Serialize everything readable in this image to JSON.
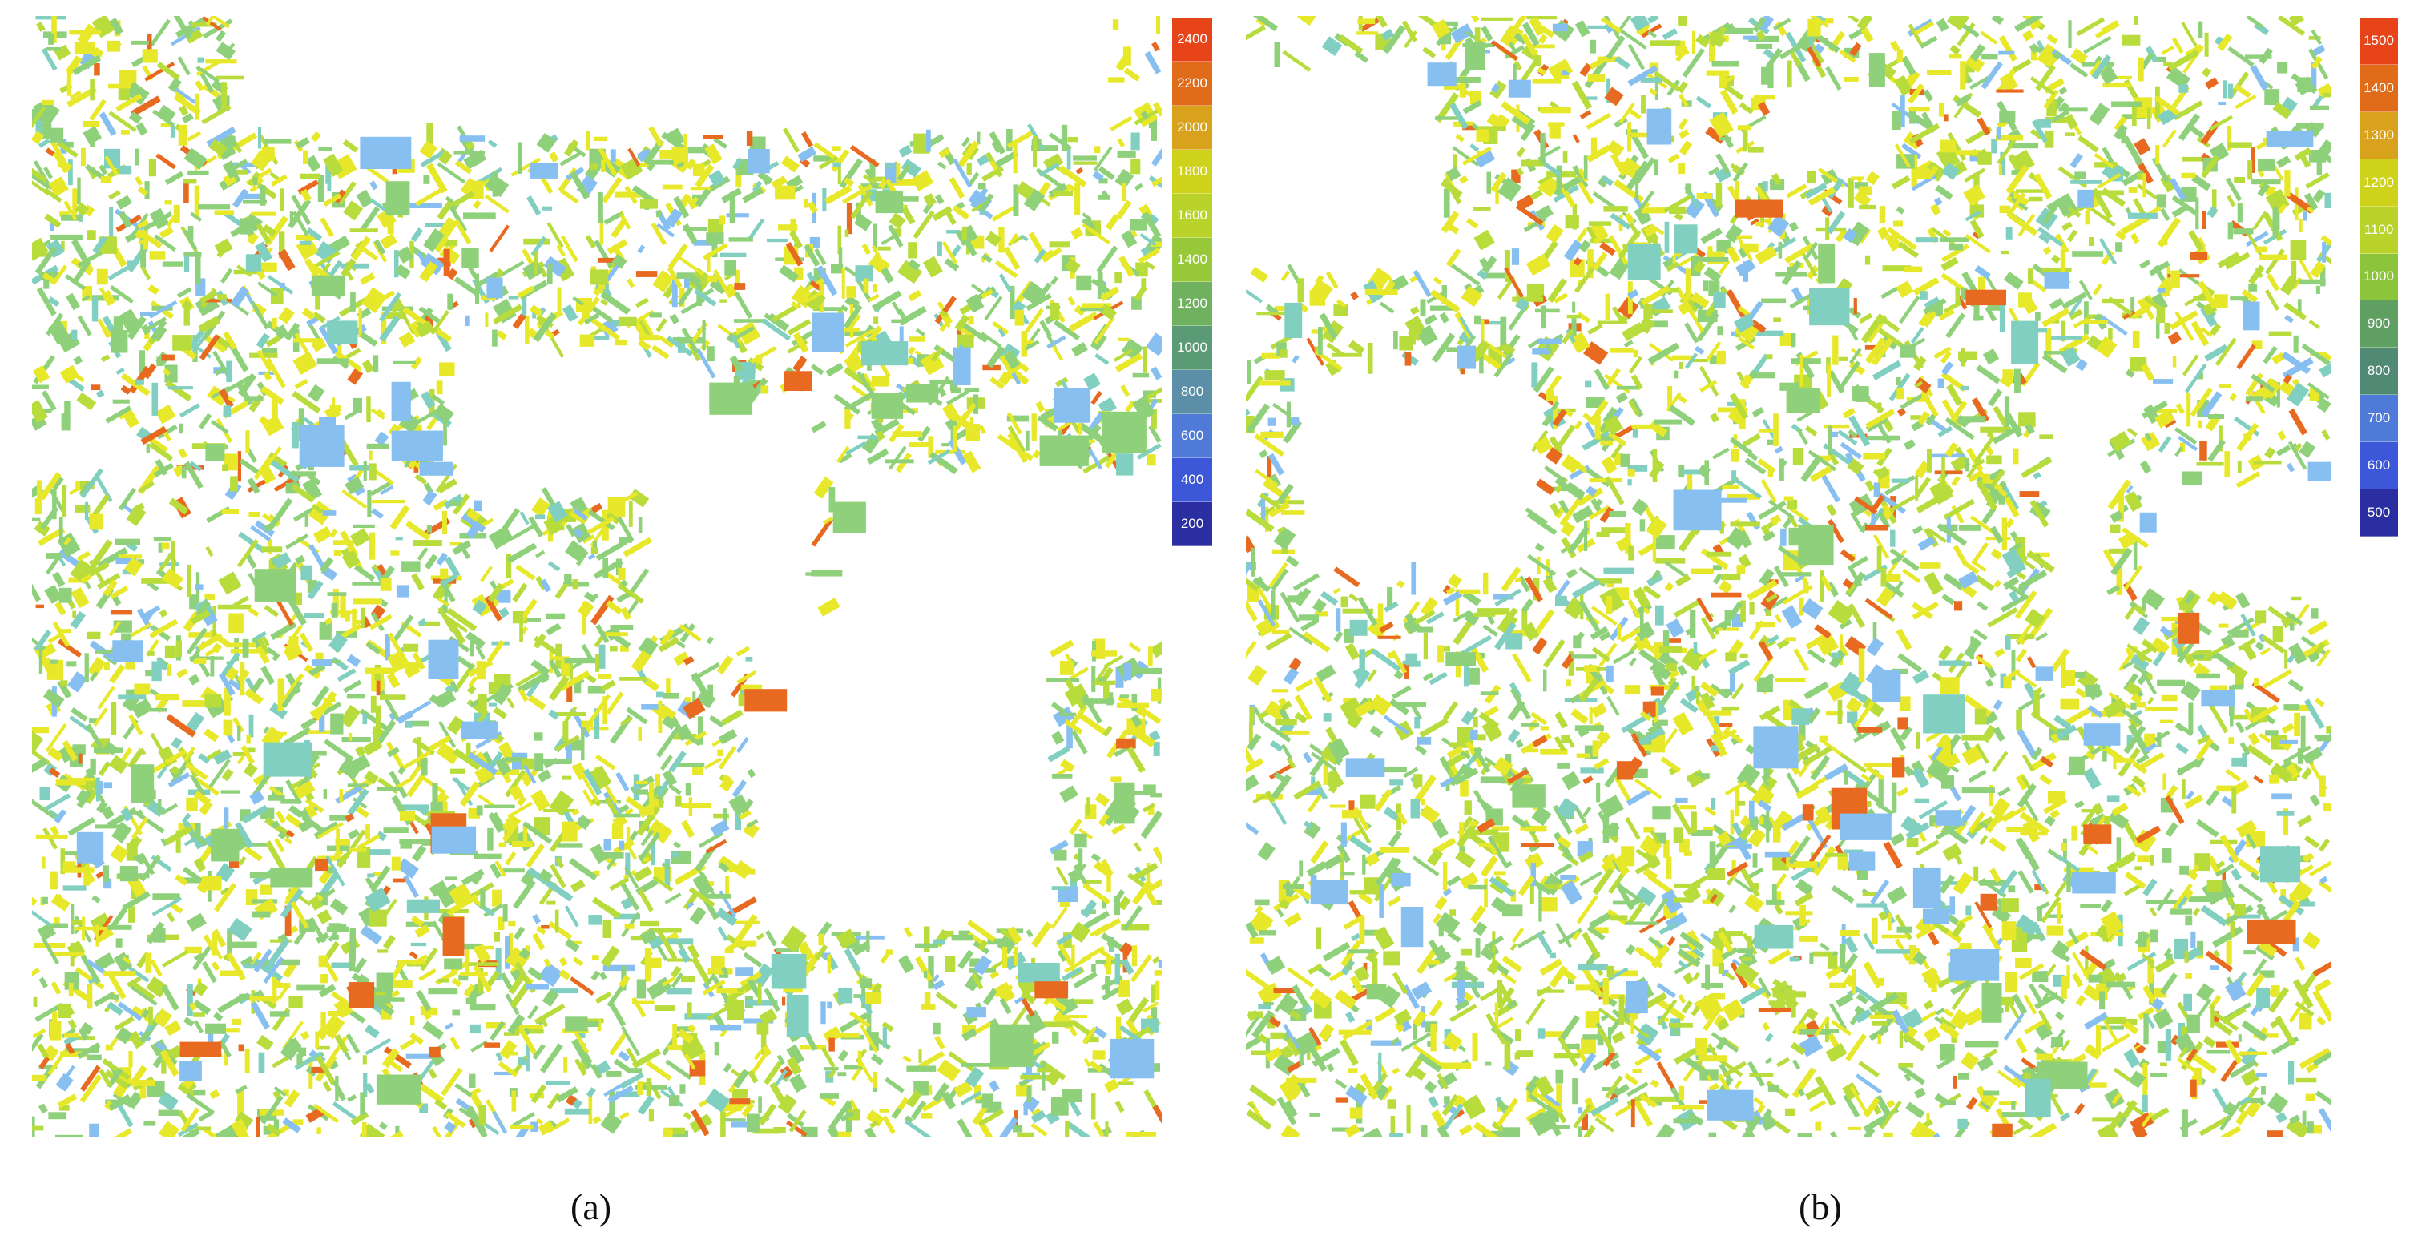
{
  "panels": [
    {
      "id": "a",
      "caption": "(a)",
      "legend": [
        {
          "label": "2400",
          "color": "#e8441a"
        },
        {
          "label": "2200",
          "color": "#e06c1a"
        },
        {
          "label": "2000",
          "color": "#d8a21c"
        },
        {
          "label": "1800",
          "color": "#cfd21a"
        },
        {
          "label": "1600",
          "color": "#b9d32a"
        },
        {
          "label": "1400",
          "color": "#97c83a"
        },
        {
          "label": "1200",
          "color": "#6fb15e"
        },
        {
          "label": "1000",
          "color": "#5a9a75"
        },
        {
          "label": "800",
          "color": "#5b8fa8"
        },
        {
          "label": "600",
          "color": "#4f7ad8"
        },
        {
          "label": "400",
          "color": "#3c58d8"
        },
        {
          "label": "200",
          "color": "#2a2ea0"
        }
      ]
    },
    {
      "id": "b",
      "caption": "(b)",
      "legend": [
        {
          "label": "1500",
          "color": "#e8441a"
        },
        {
          "label": "1400",
          "color": "#e06c1a"
        },
        {
          "label": "1300",
          "color": "#d8a21c"
        },
        {
          "label": "1200",
          "color": "#cfd21a"
        },
        {
          "label": "1100",
          "color": "#b9d32a"
        },
        {
          "label": "1000",
          "color": "#8cc43c"
        },
        {
          "label": "900",
          "color": "#5f9f62"
        },
        {
          "label": "800",
          "color": "#508a74"
        },
        {
          "label": "700",
          "color": "#4f7ad8"
        },
        {
          "label": "600",
          "color": "#3c58d8"
        },
        {
          "label": "500",
          "color": "#2a2ea0"
        }
      ]
    }
  ],
  "building_palette": {
    "yellow": "#e8e82a",
    "lime": "#b8dc3c",
    "green": "#8fd07a",
    "teal": "#80cfc0",
    "blue": "#86bff0",
    "orange": "#e86a20",
    "violet": "#6a5af0"
  }
}
